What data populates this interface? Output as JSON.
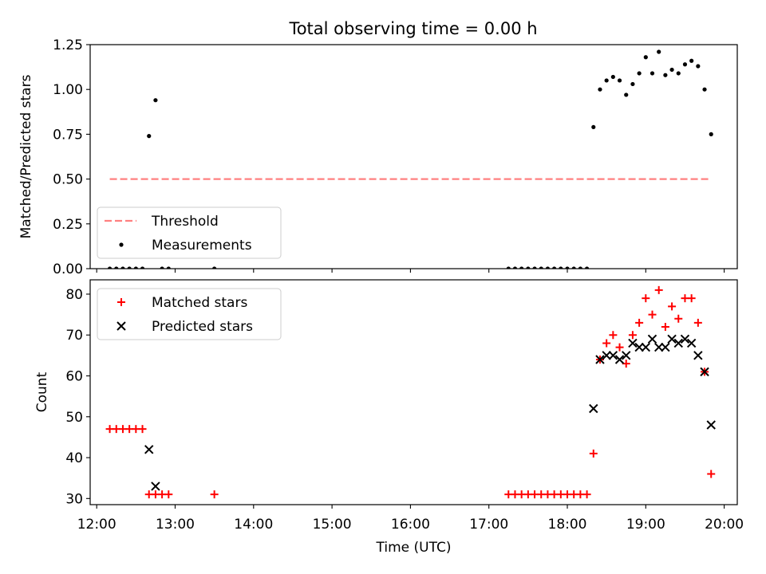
{
  "figure": {
    "title": "Total observing time = 0.00 h"
  },
  "chart_data": [
    {
      "type": "scatter",
      "panel": "top",
      "title": "Total observing time = 0.00 h",
      "xlabel": "",
      "ylabel": "Matched/Predicted stars",
      "xlim": [
        "11:55",
        "20:10"
      ],
      "ylim": [
        0,
        1.25
      ],
      "yticks": [
        0.0,
        0.25,
        0.5,
        0.75,
        1.0,
        1.25
      ],
      "ytick_labels": [
        "0.00",
        "0.25",
        "0.50",
        "0.75",
        "1.00",
        "1.25"
      ],
      "legend_position": "lower-left",
      "legend": [
        "Threshold",
        "Measurements"
      ],
      "series": [
        {
          "name": "Threshold",
          "style": "dashed-line",
          "color": "#ff8080",
          "x": [
            "12:10",
            "19:50"
          ],
          "y": [
            0.5,
            0.5
          ]
        },
        {
          "name": "Measurements",
          "style": "dot",
          "color": "#000000",
          "x": [
            "12:10",
            "12:15",
            "12:20",
            "12:25",
            "12:30",
            "12:35",
            "12:40",
            "12:45",
            "12:50",
            "12:55",
            "13:30",
            "17:15",
            "17:20",
            "17:25",
            "17:30",
            "17:35",
            "17:40",
            "17:45",
            "17:50",
            "17:55",
            "18:00",
            "18:05",
            "18:10",
            "18:15",
            "18:20",
            "18:25",
            "18:30",
            "18:35",
            "18:40",
            "18:45",
            "18:50",
            "18:55",
            "19:00",
            "19:05",
            "19:10",
            "19:15",
            "19:20",
            "19:25",
            "19:30",
            "19:35",
            "19:40",
            "19:45",
            "19:50"
          ],
          "y": [
            0,
            0,
            0,
            0,
            0,
            0,
            0.74,
            0.94,
            0,
            0,
            0,
            0,
            0,
            0,
            0,
            0,
            0,
            0,
            0,
            0,
            0,
            0,
            0,
            0,
            0.79,
            1.0,
            1.05,
            1.07,
            1.05,
            0.97,
            1.03,
            1.09,
            1.18,
            1.09,
            1.21,
            1.08,
            1.11,
            1.09,
            1.14,
            1.16,
            1.13,
            1.0,
            0.75
          ]
        }
      ]
    },
    {
      "type": "scatter",
      "panel": "bottom",
      "xlabel": "Time (UTC)",
      "ylabel": "Count",
      "xlim": [
        "11:55",
        "20:10"
      ],
      "ylim": [
        28.5,
        83.5
      ],
      "yticks": [
        30,
        40,
        50,
        60,
        70,
        80
      ],
      "ytick_labels": [
        "30",
        "40",
        "50",
        "60",
        "70",
        "80"
      ],
      "xticks": [
        "12:00",
        "13:00",
        "14:00",
        "15:00",
        "16:00",
        "17:00",
        "18:00",
        "19:00",
        "20:00"
      ],
      "xtick_labels": [
        "12:00",
        "13:00",
        "14:00",
        "15:00",
        "16:00",
        "17:00",
        "18:00",
        "19:00",
        "20:00"
      ],
      "legend_position": "upper-left",
      "legend": [
        "Matched stars",
        "Predicted stars"
      ],
      "series": [
        {
          "name": "Matched stars",
          "marker": "plus",
          "color": "#ff0000",
          "x": [
            "12:10",
            "12:15",
            "12:20",
            "12:25",
            "12:30",
            "12:35",
            "12:40",
            "12:45",
            "12:50",
            "12:55",
            "13:30",
            "17:15",
            "17:20",
            "17:25",
            "17:30",
            "17:35",
            "17:40",
            "17:45",
            "17:50",
            "17:55",
            "18:00",
            "18:05",
            "18:10",
            "18:15",
            "18:20",
            "18:25",
            "18:30",
            "18:35",
            "18:40",
            "18:45",
            "18:50",
            "18:55",
            "19:00",
            "19:05",
            "19:10",
            "19:15",
            "19:20",
            "19:25",
            "19:30",
            "19:35",
            "19:40",
            "19:45",
            "19:50"
          ],
          "y": [
            47,
            47,
            47,
            47,
            47,
            47,
            31,
            31,
            31,
            31,
            31,
            31,
            31,
            31,
            31,
            31,
            31,
            31,
            31,
            31,
            31,
            31,
            31,
            31,
            41,
            64,
            68,
            70,
            67,
            63,
            70,
            73,
            79,
            75,
            81,
            72,
            77,
            74,
            79,
            79,
            73,
            61,
            36
          ]
        },
        {
          "name": "Predicted stars",
          "marker": "x",
          "color": "#000000",
          "x": [
            "12:40",
            "12:45",
            "18:20",
            "18:25",
            "18:30",
            "18:35",
            "18:40",
            "18:45",
            "18:50",
            "18:55",
            "19:00",
            "19:05",
            "19:10",
            "19:15",
            "19:20",
            "19:25",
            "19:30",
            "19:35",
            "19:40",
            "19:45",
            "19:50"
          ],
          "y": [
            42,
            33,
            52,
            64,
            65,
            65,
            64,
            65,
            68,
            67,
            67,
            69,
            67,
            67,
            69,
            68,
            69,
            68,
            65,
            61,
            48
          ]
        }
      ]
    }
  ]
}
